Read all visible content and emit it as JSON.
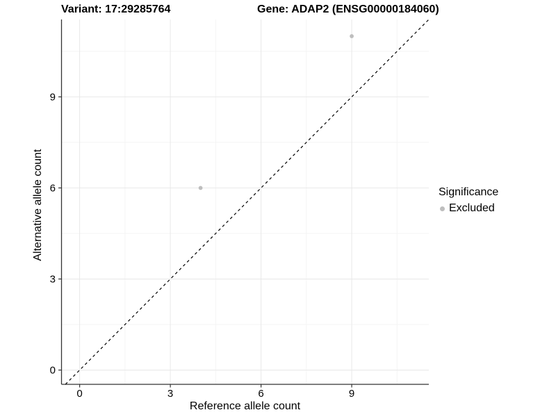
{
  "titles": {
    "variant": "Variant: 17:29285764",
    "gene": "Gene: ADAP2 (ENSG00000184060)"
  },
  "axes": {
    "x_label": "Reference allele count",
    "y_label": "Alternative allele count"
  },
  "legend": {
    "title": "Significance",
    "items": [
      {
        "label": "Excluded",
        "color": "#bebebe",
        "marker": "circle-icon"
      }
    ]
  },
  "chart_data": {
    "type": "scatter",
    "title": "Variant: 17:29285764 — Gene: ADAP2 (ENSG00000184060)",
    "xlabel": "Reference allele count",
    "ylabel": "Alternative allele count",
    "xlim": [
      -0.6,
      11.55
    ],
    "ylim": [
      -0.47,
      11.55
    ],
    "x_ticks": [
      0,
      3,
      6,
      9
    ],
    "y_ticks": [
      0,
      3,
      6,
      9
    ],
    "x_minor_breaks": [
      1.5,
      4.5,
      7.5,
      10.5
    ],
    "y_minor_breaks": [
      1.5,
      4.5,
      7.5,
      10.5
    ],
    "grid": "on",
    "legend_position": "right",
    "series": [
      {
        "name": "Excluded",
        "color": "#bebebe",
        "points": [
          {
            "x": 4,
            "y": 6
          },
          {
            "x": 9,
            "y": 11
          }
        ]
      }
    ],
    "reference_line": {
      "kind": "identity",
      "equation": "y = x",
      "style": "dashed",
      "color": "#000000"
    }
  },
  "colors": {
    "background": "#ffffff",
    "grid_major": "#e8e8e8",
    "grid_minor": "#f4f4f4",
    "axis_line": "#333333",
    "text": "#000000",
    "excluded_point": "#bebebe"
  }
}
